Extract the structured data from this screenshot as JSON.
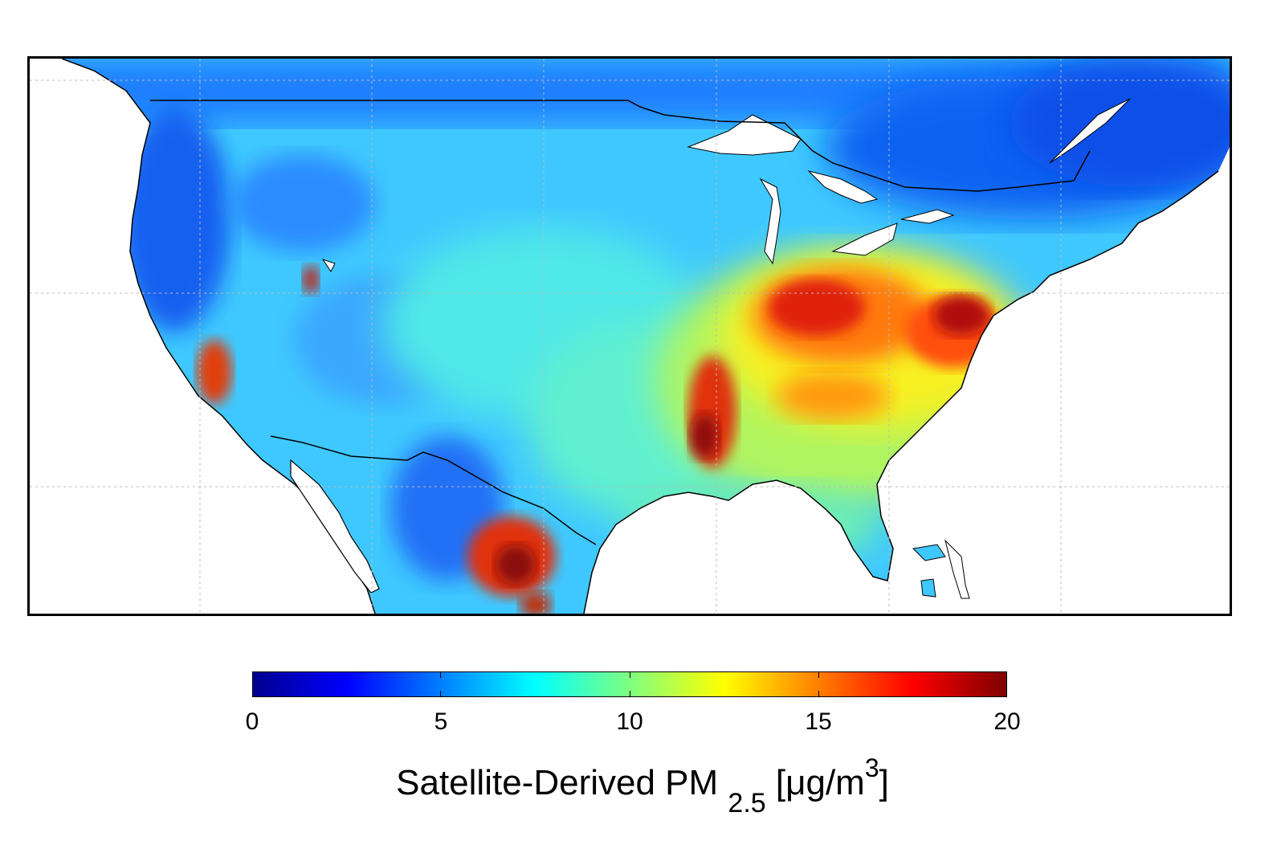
{
  "map": {
    "variable": "PM 2.5",
    "region": "North America (contiguous US, southern Canada, northern Mexico)"
  },
  "colorbar": {
    "min": 0,
    "max": 20,
    "ticks": [
      "0",
      "5",
      "10",
      "15",
      "20"
    ],
    "colors": [
      "#00008f",
      "#0000ff",
      "#007fff",
      "#00ffff",
      "#7fff7f",
      "#ffff00",
      "#ff7f00",
      "#ff0000",
      "#7f0000"
    ],
    "label_main": "Satellite-Derived PM ",
    "label_sub": "2.5",
    "label_units_open": " [μg/m",
    "label_units_sup": "3",
    "label_units_close": "]"
  },
  "hotspots": [
    {
      "name": "Ohio Valley",
      "level": 18
    },
    {
      "name": "Mid-Atlantic Coast",
      "level": 18
    },
    {
      "name": "Mississippi Valley",
      "level": 17
    },
    {
      "name": "Central Valley California",
      "level": 16
    },
    {
      "name": "Northern Mexico",
      "level": 18
    }
  ]
}
